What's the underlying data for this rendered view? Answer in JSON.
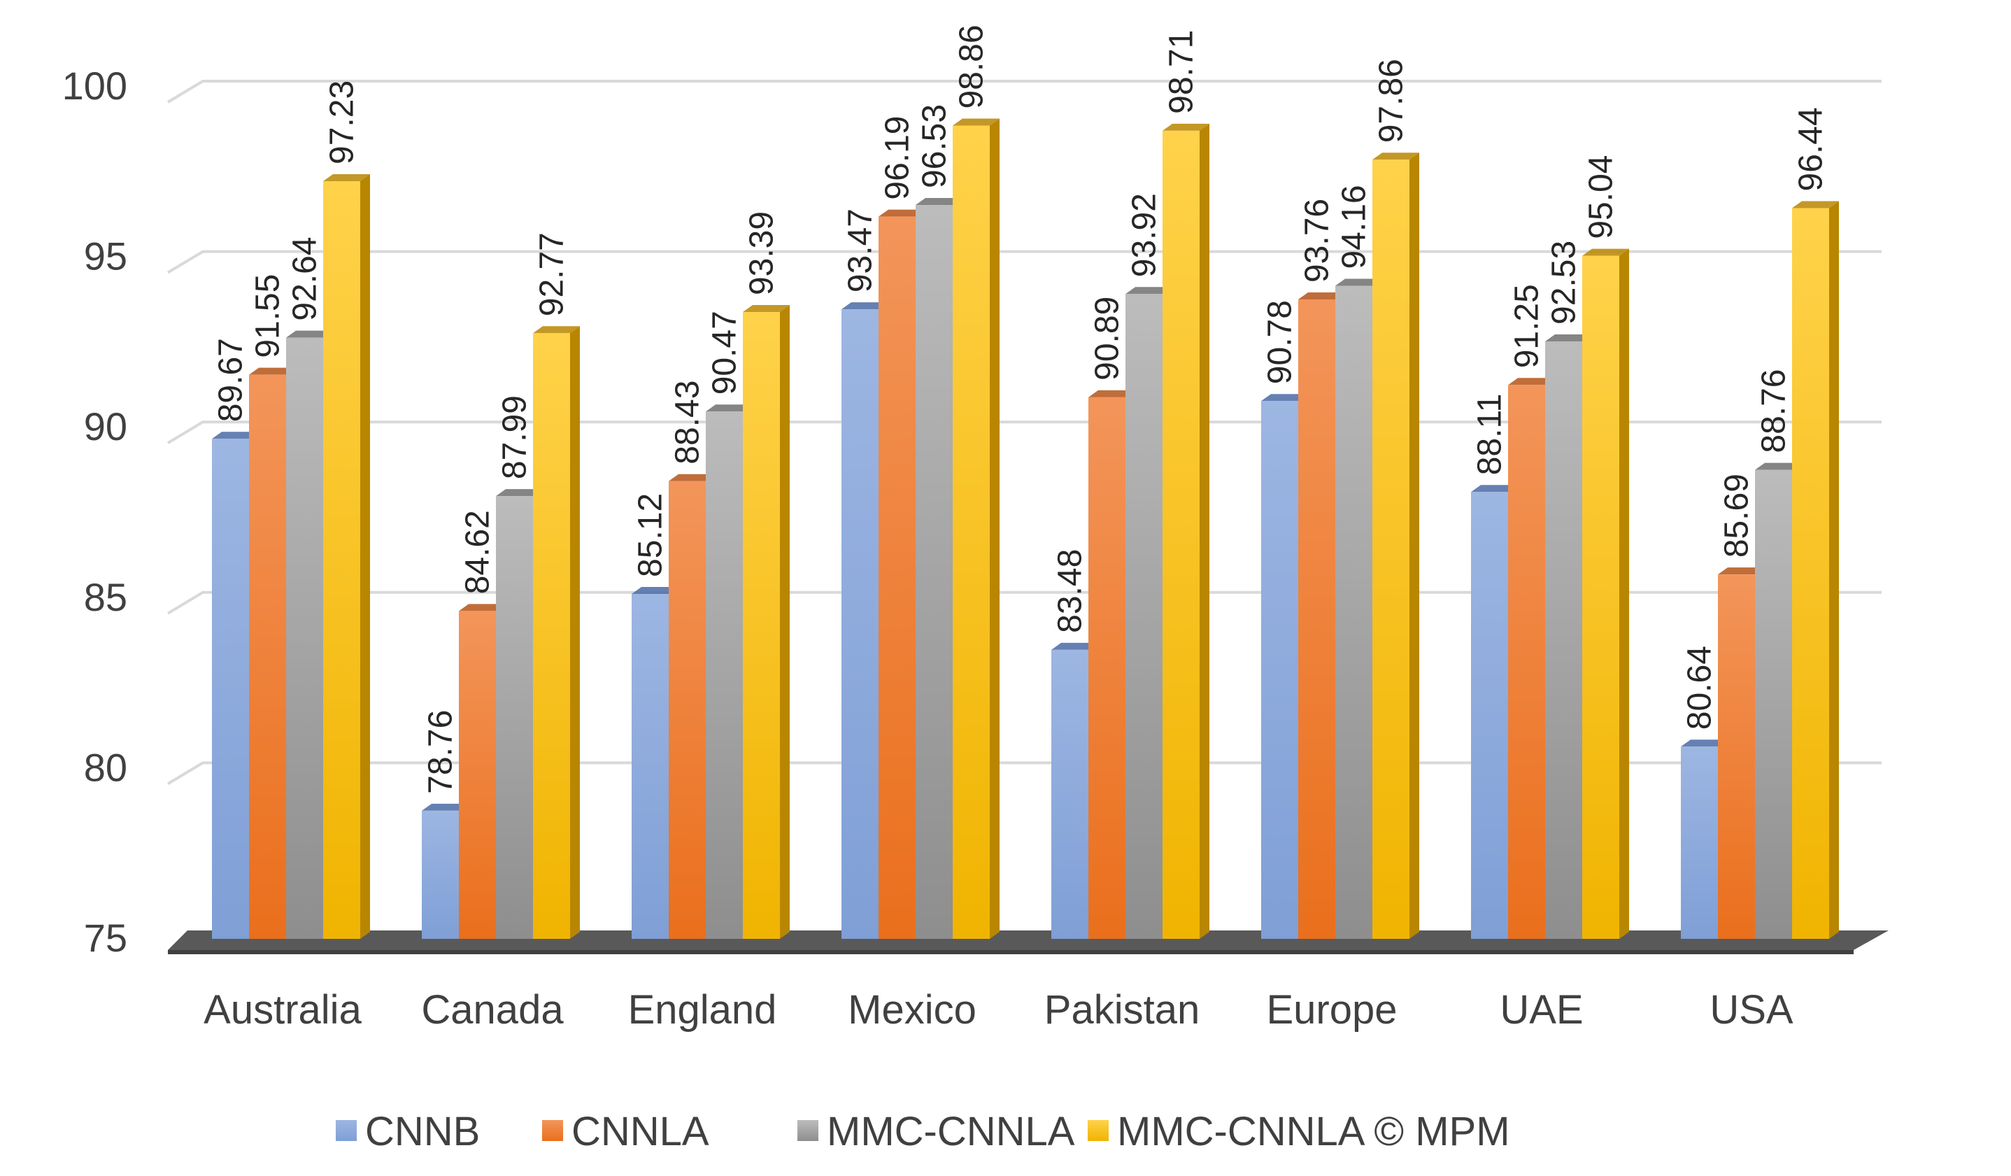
{
  "chart_data": {
    "type": "bar",
    "title": "",
    "xlabel": "",
    "ylabel": "",
    "ylim": [
      75,
      100
    ],
    "yticks": [
      75,
      80,
      85,
      90,
      95,
      100
    ],
    "ytick_labels": [
      "75",
      "80",
      "85",
      "90",
      "95",
      "100"
    ],
    "grid": true,
    "legend_position": "bottom",
    "categories": [
      "Australia",
      "Canada",
      "England",
      "Mexico",
      "Pakistan",
      "Europe",
      "UAE",
      "USA"
    ],
    "series": [
      {
        "name": "CNNB",
        "color": "#8eaadb",
        "dark": "#4a6aa6",
        "values": [
          89.67,
          78.76,
          85.12,
          93.47,
          83.48,
          90.78,
          88.11,
          80.64
        ],
        "labels": [
          "89.67",
          "78.76",
          "85.12",
          "93.47",
          "83.48",
          "90.78",
          "88.11",
          "80.64"
        ]
      },
      {
        "name": "CNNLA",
        "color": "#ed7d31",
        "dark": "#b55418",
        "values": [
          91.55,
          84.62,
          88.43,
          96.19,
          90.89,
          93.76,
          91.25,
          85.69
        ],
        "labels": [
          "91.55",
          "84.62",
          "88.43",
          "96.19",
          "90.89",
          "93.76",
          "91.25",
          "85.69"
        ]
      },
      {
        "name": "MMC-CNNLA",
        "color": "#a5a5a5",
        "dark": "#707070",
        "values": [
          92.64,
          87.99,
          90.47,
          96.53,
          93.92,
          94.16,
          92.53,
          88.76
        ],
        "labels": [
          "92.64",
          "87.99",
          "90.47",
          "96.53",
          "93.92",
          "94.16",
          "92.53",
          "88.76"
        ]
      },
      {
        "name": "MMC-CNNLA © MPM",
        "color": "#ffc000",
        "dark": "#b88600",
        "values": [
          97.23,
          92.77,
          93.39,
          98.86,
          98.71,
          97.86,
          95.04,
          96.44
        ],
        "labels": [
          "97.23",
          "92.77",
          "93.39",
          "98.86",
          "98.71",
          "97.86",
          "95.04",
          "96.44"
        ]
      }
    ]
  }
}
